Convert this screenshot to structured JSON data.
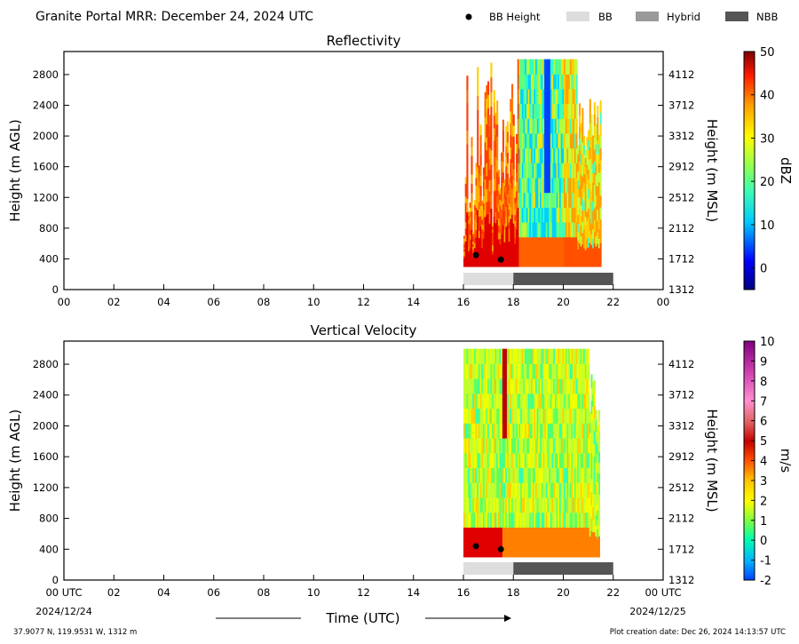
{
  "header": {
    "title": "Granite Portal MRR:  December 24, 2024 UTC",
    "legend": [
      {
        "label": "BB Height",
        "kind": "dot",
        "color": "#000000"
      },
      {
        "label": "BB",
        "kind": "box",
        "color": "#dddddd"
      },
      {
        "label": "Hybrid",
        "kind": "box",
        "color": "#999999"
      },
      {
        "label": "NBB",
        "kind": "box",
        "color": "#555555"
      }
    ]
  },
  "footer": {
    "location": "37.9077 N, 119.9531 W, 1312 m",
    "created": "Plot creation date: Dec 26, 2024 14:13:57 UTC",
    "xlabel": "Time (UTC)",
    "start_date": "2024/12/24",
    "end_date": "2024/12/25"
  },
  "chart_data": [
    {
      "type": "heatmap",
      "title": "Reflectivity",
      "ylabel": "Height (m AGL)",
      "ylabel_right": "Height (m MSL)",
      "xlim": [
        0,
        24
      ],
      "ylim": [
        0,
        3100
      ],
      "x_ticks": [
        "00",
        "02",
        "04",
        "06",
        "08",
        "10",
        "12",
        "14",
        "16",
        "18",
        "20",
        "22",
        "00"
      ],
      "y_ticks": [
        0,
        400,
        800,
        1200,
        1600,
        2000,
        2400,
        2800
      ],
      "y_ticks_right": [
        1312,
        1712,
        2112,
        2512,
        2912,
        3312,
        3712,
        4112
      ],
      "colorbar": {
        "label": "dBZ",
        "min": -5,
        "max": 50,
        "ticks": [
          0,
          10,
          20,
          30,
          40,
          50
        ]
      },
      "data_extent_hours": [
        16,
        21.5
      ],
      "bb_height": [
        {
          "time": 16.5,
          "height": 450
        },
        {
          "time": 17.5,
          "height": 390
        }
      ],
      "bb_type": [
        {
          "start": 16,
          "end": 18,
          "type": "BB"
        },
        {
          "start": 18,
          "end": 22,
          "type": "NBB"
        }
      ]
    },
    {
      "type": "heatmap",
      "title": "Vertical Velocity",
      "ylabel": "Height (m AGL)",
      "ylabel_right": "Height (m MSL)",
      "xlim": [
        0,
        24
      ],
      "ylim": [
        0,
        3100
      ],
      "x_ticks": [
        "00 UTC",
        "02",
        "04",
        "06",
        "08",
        "10",
        "12",
        "14",
        "16",
        "18",
        "20",
        "22",
        "00 UTC"
      ],
      "y_ticks": [
        0,
        400,
        800,
        1200,
        1600,
        2000,
        2400,
        2800
      ],
      "y_ticks_right": [
        1312,
        1712,
        2112,
        2512,
        2912,
        3312,
        3712,
        4112
      ],
      "colorbar": {
        "label": "m/s",
        "min": -2,
        "max": 10,
        "ticks": [
          -2,
          -1,
          0,
          1,
          2,
          3,
          4,
          5,
          6,
          7,
          8,
          9,
          10
        ]
      },
      "data_extent_hours": [
        16,
        21.4
      ],
      "bb_height": [
        {
          "time": 16.5,
          "height": 440
        },
        {
          "time": 17.5,
          "height": 400
        }
      ],
      "bb_type": [
        {
          "start": 16,
          "end": 18,
          "type": "BB"
        },
        {
          "start": 18,
          "end": 22,
          "type": "NBB"
        }
      ]
    }
  ]
}
